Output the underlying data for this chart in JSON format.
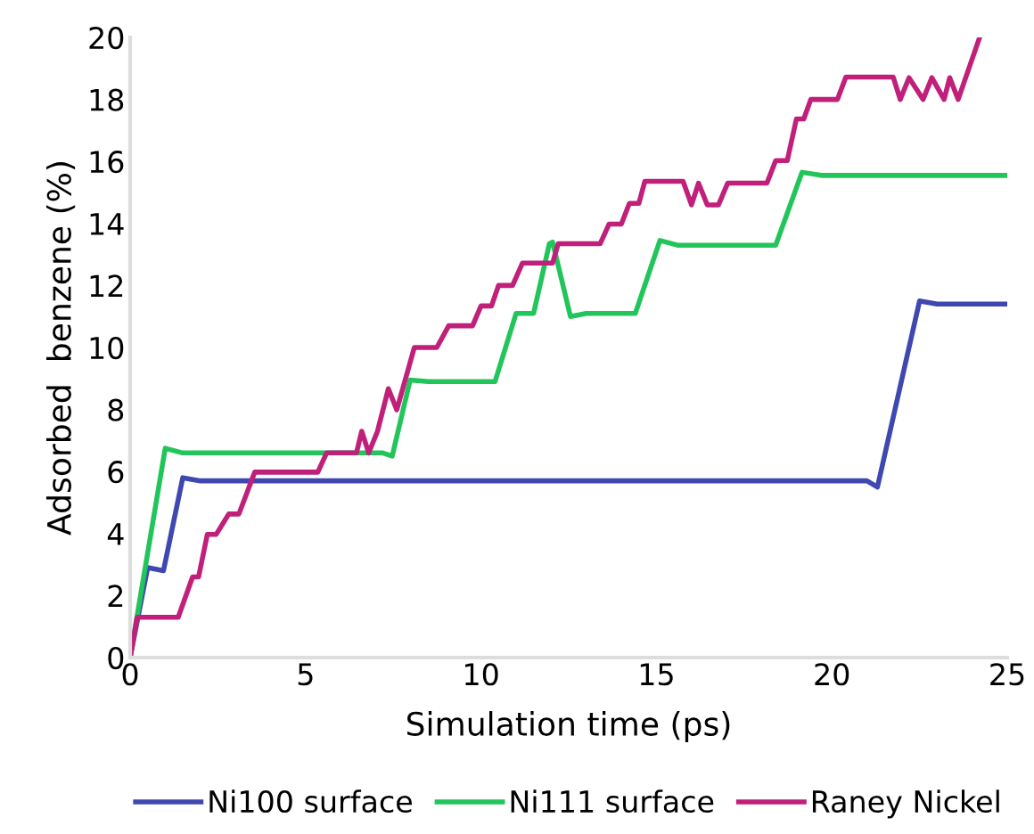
{
  "chart_data": {
    "type": "line",
    "xlabel": "Simulation time (ps)",
    "ylabel": "Adsorbed  benzene (%)",
    "xlim": [
      0,
      25
    ],
    "xticks": [
      0,
      5,
      10,
      15,
      20,
      25
    ],
    "ylim": [
      0,
      20
    ],
    "yticks": [
      0,
      2,
      4,
      6,
      8,
      10,
      12,
      14,
      16,
      18,
      20
    ],
    "grid": false,
    "legend": "bottom",
    "marker": "none",
    "line_style": "solid",
    "series": [
      {
        "name": "Ni100 surface",
        "color": "#3f48b0",
        "x": [
          0,
          0.5,
          0.95,
          1.5,
          2.0,
          21.0,
          21.3,
          22.5,
          23.0,
          25
        ],
        "values": [
          0,
          2.9,
          2.8,
          5.8,
          5.7,
          5.7,
          5.5,
          11.5,
          11.4,
          11.4
        ]
      },
      {
        "name": "Ni111 surface",
        "color": "#22c55a",
        "x": [
          0,
          1.0,
          1.5,
          7.2,
          7.47,
          7.98,
          8.5,
          10.4,
          11.0,
          11.5,
          11.95,
          12.04,
          12.55,
          13.0,
          14.4,
          15.1,
          15.6,
          18.4,
          19.15,
          19.7,
          25
        ],
        "values": [
          0,
          6.75,
          6.6,
          6.6,
          6.5,
          8.95,
          8.9,
          8.9,
          11.1,
          11.1,
          13.35,
          13.4,
          11.0,
          11.1,
          11.1,
          13.45,
          13.3,
          13.3,
          15.65,
          15.55,
          15.55
        ]
      },
      {
        "name": "Raney Nickel",
        "color": "#c0207a",
        "x": [
          0,
          0.2,
          1.37,
          1.78,
          1.95,
          2.2,
          2.45,
          2.81,
          3.1,
          3.55,
          5.35,
          5.6,
          6.45,
          6.6,
          6.8,
          7.05,
          7.36,
          7.6,
          8.1,
          8.74,
          9.08,
          9.76,
          10.0,
          10.3,
          10.5,
          10.9,
          11.18,
          12.04,
          12.2,
          13.4,
          13.65,
          14.0,
          14.23,
          14.5,
          14.67,
          15.76,
          16.0,
          16.2,
          16.45,
          16.77,
          17.03,
          18.15,
          18.4,
          18.73,
          18.99,
          19.2,
          19.4,
          20.16,
          20.4,
          21.75,
          21.95,
          22.2,
          22.6,
          22.85,
          23.2,
          23.36,
          23.6,
          24.2
        ],
        "values": [
          0,
          1.3,
          1.3,
          2.6,
          2.6,
          3.97,
          3.97,
          4.63,
          4.63,
          5.98,
          5.98,
          6.6,
          6.6,
          7.3,
          6.6,
          7.3,
          8.67,
          7.99,
          10.0,
          10.0,
          10.7,
          10.7,
          11.34,
          11.34,
          12.0,
          12.0,
          12.72,
          12.72,
          13.35,
          13.35,
          13.98,
          13.98,
          14.65,
          14.65,
          15.36,
          15.36,
          14.6,
          15.3,
          14.6,
          14.6,
          15.3,
          15.3,
          16.03,
          16.03,
          17.37,
          17.37,
          18.0,
          18.0,
          18.72,
          18.72,
          18.0,
          18.7,
          18.0,
          18.7,
          18.0,
          18.7,
          18.0,
          19.96
        ]
      }
    ]
  }
}
